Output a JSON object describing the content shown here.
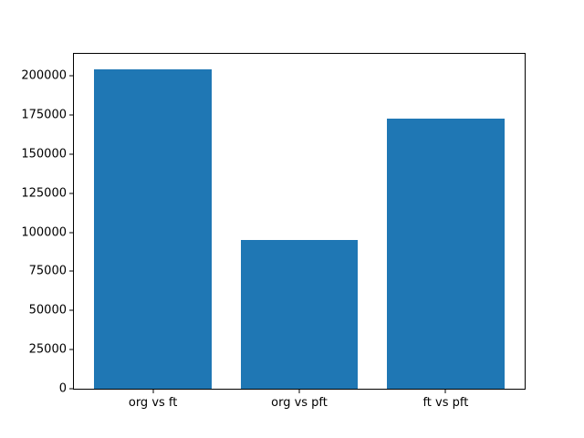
{
  "chart_data": {
    "type": "bar",
    "categories": [
      "org vs ft",
      "org vs pft",
      "ft vs pft"
    ],
    "values": [
      204000,
      95000,
      173000
    ],
    "title": "",
    "xlabel": "",
    "ylabel": "",
    "xlim": [
      -0.54,
      2.54
    ],
    "ylim": [
      0,
      214200
    ],
    "yticks": [
      0,
      25000,
      50000,
      75000,
      100000,
      125000,
      150000,
      175000,
      200000
    ],
    "bar_width_fraction": 0.8,
    "bar_color": "#1f77b4",
    "axes_color": "#000000",
    "background_color": "#ffffff",
    "grid": false,
    "legend": null
  }
}
